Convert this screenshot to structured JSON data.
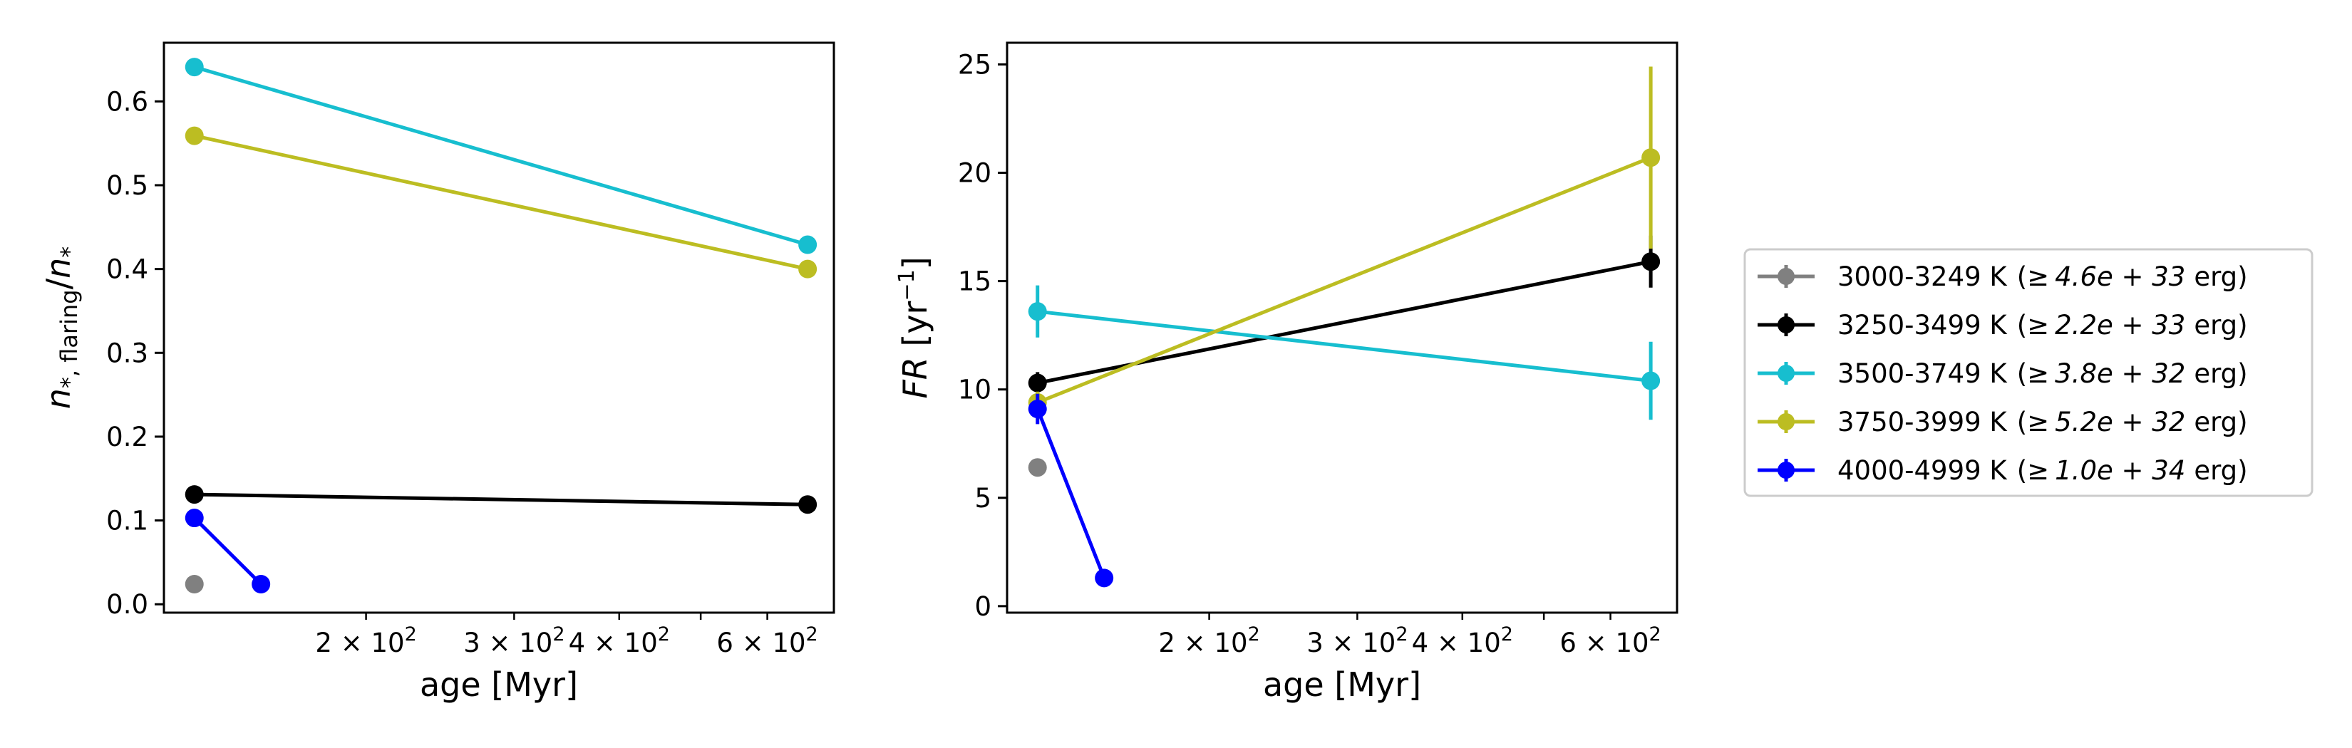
{
  "chart_data": [
    {
      "type": "line",
      "panel": "left",
      "title": "",
      "xlabel": "age [Myr]",
      "ylabel": "n_{*,flaring}/n_{*}",
      "ylabel_parts": {
        "main": "n",
        "sub": "*, flaring",
        "sep": "/",
        "main2": "n",
        "sub2": "*"
      },
      "xscale": "log",
      "xlim": [
        115,
        720
      ],
      "ylim": [
        -0.01,
        0.67
      ],
      "x_ticks": [
        {
          "value": 200,
          "label": "2 × 10",
          "exp": "2"
        },
        {
          "value": 300,
          "label": "3 × 10",
          "exp": "2"
        },
        {
          "value": 400,
          "label": "4 × 10",
          "exp": "2"
        },
        {
          "value": 600,
          "label": "6 × 10",
          "exp": "2"
        }
      ],
      "x_minor_ticks": [
        500
      ],
      "y_ticks": [
        {
          "value": 0.0,
          "label": "0.0"
        },
        {
          "value": 0.1,
          "label": "0.1"
        },
        {
          "value": 0.2,
          "label": "0.2"
        },
        {
          "value": 0.3,
          "label": "0.3"
        },
        {
          "value": 0.4,
          "label": "0.4"
        },
        {
          "value": 0.5,
          "label": "0.5"
        },
        {
          "value": 0.6,
          "label": "0.6"
        }
      ],
      "series": [
        {
          "name": "3000-3249 K",
          "color": "#808080",
          "points": [
            {
              "x": 125,
              "y": 0.024
            }
          ]
        },
        {
          "name": "3250-3499 K",
          "color": "#000000",
          "points": [
            {
              "x": 125,
              "y": 0.131
            },
            {
              "x": 670,
              "y": 0.119
            }
          ]
        },
        {
          "name": "3500-3749 K",
          "color": "#17becf",
          "points": [
            {
              "x": 125,
              "y": 0.641
            },
            {
              "x": 670,
              "y": 0.429
            }
          ]
        },
        {
          "name": "3750-3999 K",
          "color": "#bcbd22",
          "points": [
            {
              "x": 125,
              "y": 0.559
            },
            {
              "x": 670,
              "y": 0.4
            }
          ]
        },
        {
          "name": "4000-4999 K",
          "color": "#0000ff",
          "points": [
            {
              "x": 125,
              "y": 0.103
            },
            {
              "x": 150,
              "y": 0.024
            }
          ]
        }
      ]
    },
    {
      "type": "line",
      "panel": "right",
      "title": "",
      "xlabel": "age [Myr]",
      "ylabel": "FR [yr^-1]",
      "ylabel_parts": {
        "main": "FR",
        "unit": " [yr",
        "exp": "−1",
        "close": "]"
      },
      "xscale": "log",
      "xlim": [
        115,
        720
      ],
      "ylim": [
        -0.3,
        26.0
      ],
      "x_ticks": [
        {
          "value": 200,
          "label": "2 × 10",
          "exp": "2"
        },
        {
          "value": 300,
          "label": "3 × 10",
          "exp": "2"
        },
        {
          "value": 400,
          "label": "4 × 10",
          "exp": "2"
        },
        {
          "value": 600,
          "label": "6 × 10",
          "exp": "2"
        }
      ],
      "x_minor_ticks": [
        500
      ],
      "y_ticks": [
        {
          "value": 0,
          "label": "0"
        },
        {
          "value": 5,
          "label": "5"
        },
        {
          "value": 10,
          "label": "10"
        },
        {
          "value": 15,
          "label": "15"
        },
        {
          "value": 20,
          "label": "20"
        },
        {
          "value": 25,
          "label": "25"
        }
      ],
      "series": [
        {
          "name": "3000-3249 K",
          "color": "#808080",
          "points": [
            {
              "x": 125,
              "y": 6.4,
              "err": 0.0
            }
          ]
        },
        {
          "name": "3250-3499 K",
          "color": "#000000",
          "points": [
            {
              "x": 125,
              "y": 10.3,
              "err": 0.5
            },
            {
              "x": 670,
              "y": 15.9,
              "err": 1.2
            }
          ]
        },
        {
          "name": "3500-3749 K",
          "color": "#17becf",
          "points": [
            {
              "x": 125,
              "y": 13.6,
              "err": 1.2
            },
            {
              "x": 670,
              "y": 10.4,
              "err": 1.8
            }
          ]
        },
        {
          "name": "3750-3999 K",
          "color": "#bcbd22",
          "points": [
            {
              "x": 125,
              "y": 9.4,
              "err": 0.5
            },
            {
              "x": 670,
              "y": 20.7,
              "err": 4.2
            }
          ]
        },
        {
          "name": "4000-4999 K",
          "color": "#0000ff",
          "points": [
            {
              "x": 125,
              "y": 9.1,
              "err": 0.7
            },
            {
              "x": 150,
              "y": 1.3,
              "err": 0.0
            }
          ]
        }
      ]
    }
  ],
  "legend": {
    "placement": "right",
    "entries": [
      {
        "name": "3000-3249 K",
        "threshold_pre": "(≥",
        "threshold": "4.6e + 33",
        "unit": "erg)",
        "color": "#808080"
      },
      {
        "name": "3250-3499 K",
        "threshold_pre": "(≥",
        "threshold": "2.2e + 33",
        "unit": "erg)",
        "color": "#000000"
      },
      {
        "name": "3500-3749 K",
        "threshold_pre": "(≥",
        "threshold": "3.8e + 32",
        "unit": "erg)",
        "color": "#17becf"
      },
      {
        "name": "3750-3999 K",
        "threshold_pre": "(≥",
        "threshold": "5.2e + 32",
        "unit": "erg)",
        "color": "#bcbd22"
      },
      {
        "name": "4000-4999 K",
        "threshold_pre": "(≥",
        "threshold": "1.0e + 34",
        "unit": "erg)",
        "color": "#0000ff"
      }
    ]
  }
}
